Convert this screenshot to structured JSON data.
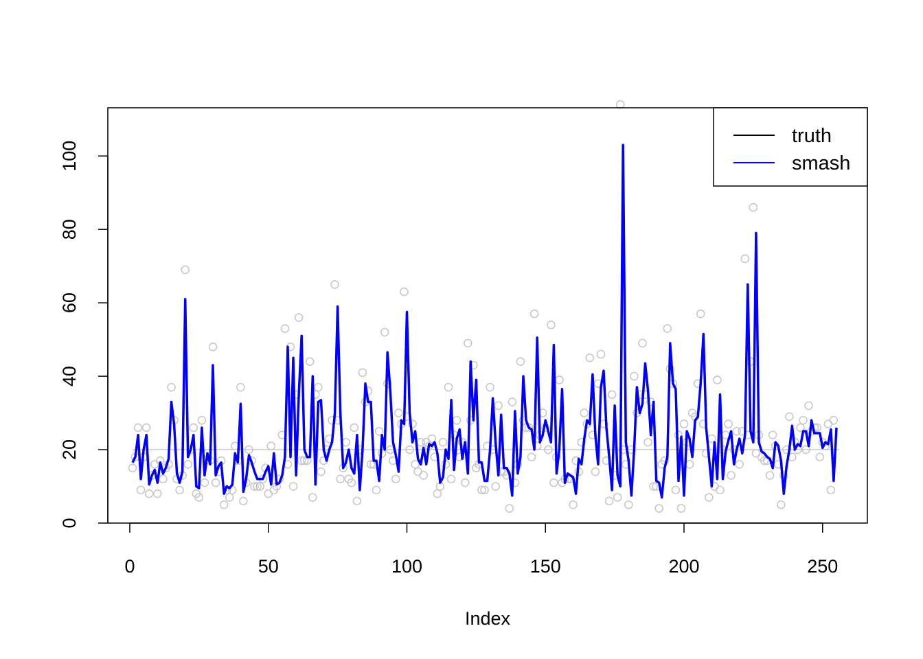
{
  "chart_data": {
    "type": "line",
    "title": "",
    "xlabel": "Index",
    "ylabel": "",
    "xlim": [
      1,
      256
    ],
    "ylim": [
      0,
      115
    ],
    "x_ticks": [
      0,
      50,
      100,
      150,
      200,
      250
    ],
    "y_ticks": [
      0,
      20,
      40,
      60,
      80,
      100
    ],
    "grid": false,
    "legend_position": "top-right",
    "legend": [
      {
        "label": "truth",
        "color": "#000000"
      },
      {
        "label": "smash",
        "color": "#0000ff"
      }
    ],
    "observed_color": "#c8c8c8",
    "truth_color": "#c8c8c8",
    "series": [
      {
        "name": "truth",
        "kind": "line",
        "color": "#c8c8c8",
        "x": [
          1,
          256
        ],
        "values": [
          20,
          20
        ]
      },
      {
        "name": "smash",
        "kind": "line",
        "color": "#0000ff",
        "x_start": 1,
        "values": [
          16.5,
          18,
          24,
          12,
          20,
          24,
          10.5,
          13,
          14.5,
          11,
          16.5,
          13.5,
          15,
          17.5,
          33,
          27,
          13.5,
          11,
          14,
          61,
          18,
          20,
          24,
          10,
          9.5,
          26,
          13,
          19,
          16,
          43,
          13,
          15.5,
          16.5,
          8,
          10,
          9.5,
          10.5,
          19,
          16.5,
          32.5,
          8.5,
          12,
          18.5,
          16.5,
          14,
          12,
          12,
          12,
          14,
          15.5,
          10.5,
          19,
          10.5,
          11,
          13,
          18,
          48,
          18,
          45,
          13,
          35,
          51,
          20,
          18,
          18,
          40,
          10.5,
          33,
          33.5,
          20,
          17,
          20,
          22,
          30,
          59,
          30,
          15,
          16.5,
          20,
          15,
          13.5,
          24,
          9,
          20,
          38,
          33,
          33,
          17,
          17,
          11.5,
          24,
          20,
          46.5,
          36,
          22,
          18.5,
          14,
          28,
          27,
          57.5,
          30,
          22,
          25,
          17.5,
          16,
          20.5,
          16,
          21.5,
          21,
          22,
          19,
          11,
          12.5,
          20,
          17.5,
          33.5,
          14.5,
          23,
          25.5,
          17.5,
          22,
          13.5,
          44,
          28,
          39,
          16.5,
          16.5,
          11.5,
          11.5,
          20,
          34,
          22,
          13,
          29.5,
          15,
          15,
          13.5,
          7.5,
          30.5,
          13.5,
          18,
          40,
          28,
          26,
          25.5,
          20,
          50.5,
          22,
          24,
          28,
          25,
          22,
          48.5,
          13.5,
          20,
          36.5,
          11,
          13.5,
          13,
          12.5,
          8,
          17.5,
          16,
          23,
          28,
          27,
          40.5,
          24,
          16,
          37,
          41.5,
          26,
          18,
          9,
          32,
          13,
          10,
          103,
          22,
          17,
          7.5,
          20,
          37,
          30,
          32.5,
          43.5,
          36,
          24,
          33,
          11.5,
          11,
          7,
          15,
          18,
          49,
          38,
          36.5,
          11.5,
          23.5,
          7.5,
          25,
          23,
          18,
          28,
          29,
          38,
          51.5,
          26,
          18,
          10,
          22,
          12,
          35,
          12,
          19.5,
          22.5,
          25,
          16,
          20,
          23,
          19,
          24,
          65,
          25,
          22,
          79,
          22,
          19.5,
          19,
          18,
          17.5,
          15,
          22,
          21,
          17,
          8,
          15.5,
          20,
          26.5,
          20,
          21.5,
          21,
          25,
          25,
          21,
          28,
          24.5,
          24.5,
          24.5,
          20.5,
          22,
          21.5,
          25.5,
          11.5,
          26
        ]
      },
      {
        "name": "observed",
        "kind": "points",
        "color": "#c8c8c8",
        "x_start": 1,
        "values": [
          15,
          18,
          26,
          9,
          18,
          26,
          8,
          13,
          16,
          8,
          17,
          12,
          15,
          16,
          37,
          28,
          12,
          9,
          13,
          69,
          16,
          20,
          26,
          8,
          7,
          28,
          11,
          19,
          17,
          48,
          11,
          14,
          17,
          5,
          9,
          7,
          9,
          21,
          17,
          37,
          6,
          11,
          20,
          17,
          10,
          10,
          10,
          12,
          15,
          8,
          21,
          9,
          10,
          12,
          24,
          53,
          16,
          48,
          10,
          35,
          56,
          17,
          17,
          17,
          44,
          7,
          35,
          37,
          14,
          17,
          20,
          23,
          28,
          65,
          28,
          12,
          15,
          22,
          12,
          11,
          26,
          6,
          20,
          41,
          33,
          36,
          16,
          16,
          9,
          25,
          19,
          52,
          38,
          20,
          17,
          12,
          30,
          27,
          63,
          29,
          20,
          27,
          16,
          14,
          22,
          13,
          22,
          21,
          23,
          18,
          8,
          10,
          22,
          16,
          37,
          12,
          24,
          28,
          18,
          22,
          11,
          49,
          28,
          43,
          15,
          16,
          9,
          9,
          21,
          37,
          20,
          10,
          32,
          14,
          14,
          13,
          4,
          33,
          11,
          16,
          44,
          28,
          26,
          26,
          18,
          57,
          21,
          24,
          30,
          26,
          20,
          54,
          11,
          18,
          39,
          11,
          12,
          12,
          12,
          5,
          17,
          14,
          22,
          30,
          27,
          45,
          24,
          14,
          38,
          46,
          27,
          17,
          6,
          35,
          13,
          7,
          114,
          20,
          16,
          5,
          20,
          40,
          30,
          35,
          49,
          35,
          22,
          33,
          10,
          10,
          4,
          16,
          17,
          53,
          42,
          38,
          9,
          24,
          4,
          27,
          22,
          16,
          30,
          29,
          38,
          57,
          27,
          19,
          7,
          23,
          10,
          39,
          9,
          20,
          24,
          27,
          13,
          20,
          25,
          16,
          25,
          72,
          24,
          44,
          86,
          19,
          24,
          18,
          17,
          17,
          13,
          24,
          21,
          16,
          5,
          13,
          20,
          29,
          18,
          22,
          20,
          26,
          28,
          20,
          32,
          25,
          26,
          26,
          18,
          22,
          21,
          27,
          9,
          28
        ]
      }
    ]
  }
}
